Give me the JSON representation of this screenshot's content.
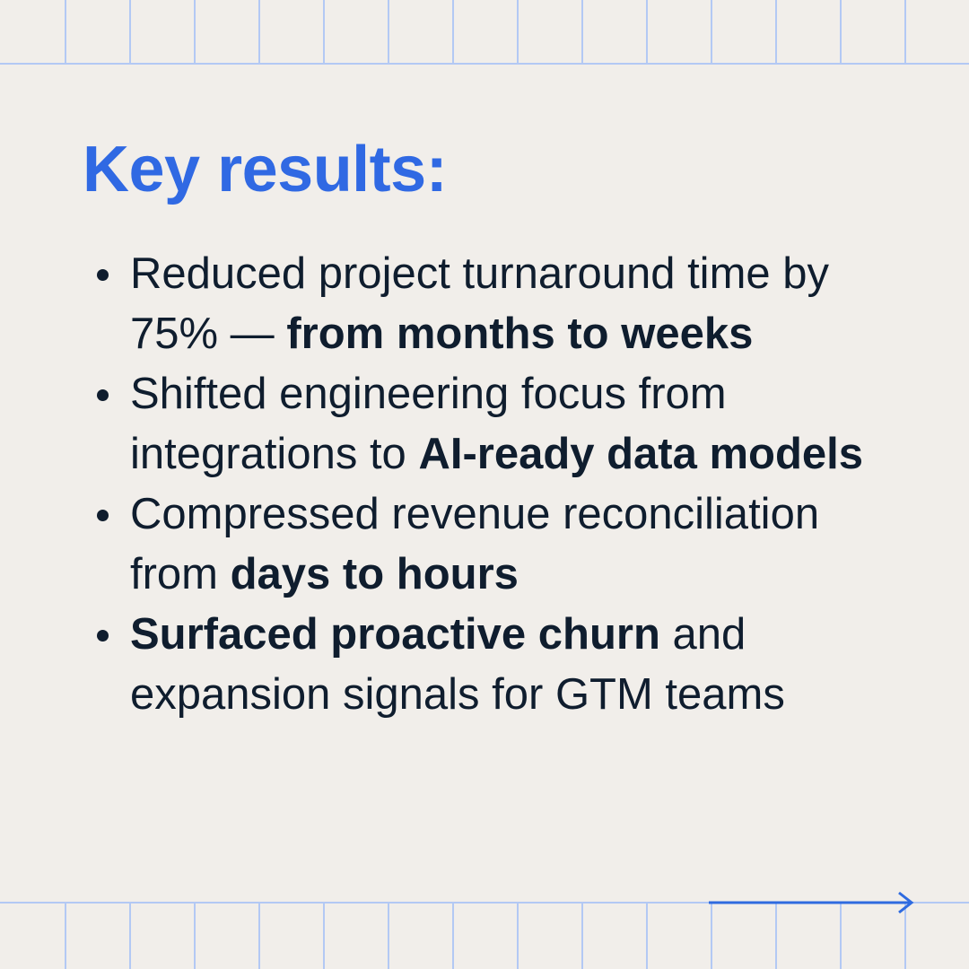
{
  "title": "Key results:",
  "items": [
    [
      {
        "text": "Reduced project turnaround time by 75% —",
        "bold": false
      },
      {
        "text": "from months to weeks",
        "bold": true
      }
    ],
    [
      {
        "text": "Shifted engineering focus from integrations to",
        "bold": false
      },
      {
        "text": "AI-ready data models",
        "bold": true
      }
    ],
    [
      {
        "text": "Compressed revenue reconciliation from",
        "bold": false
      },
      {
        "text": "days to hours",
        "bold": true
      }
    ],
    [
      {
        "text": "Surfaced proactive churn",
        "bold": true
      },
      {
        "text": "and expansion signals for GTM teams",
        "bold": false
      }
    ]
  ]
}
